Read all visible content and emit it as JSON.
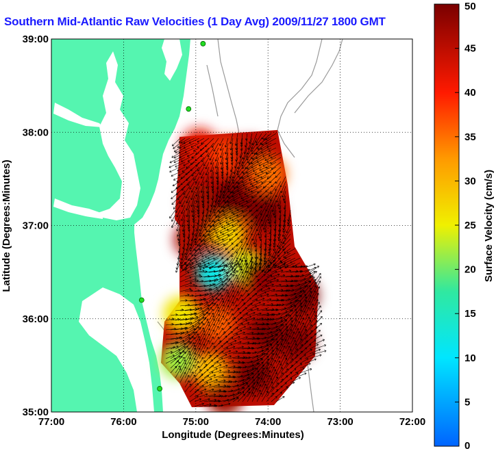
{
  "title": "Southern Mid-Atlantic Raw Velocities (1 Day Avg) 2009/11/27 1800 GMT",
  "x_axis": {
    "label": "Longitude (Degrees:Minutes)",
    "ticks": [
      {
        "value": -77,
        "label": "77:00"
      },
      {
        "value": -76,
        "label": "76:00"
      },
      {
        "value": -75,
        "label": "75:00"
      },
      {
        "value": -74,
        "label": "74:00"
      },
      {
        "value": -73,
        "label": "73:00"
      },
      {
        "value": -72,
        "label": "72:00"
      }
    ]
  },
  "y_axis": {
    "label": "Latitude (Degrees:Minutes)",
    "ticks": [
      {
        "value": 35,
        "label": "35:00"
      },
      {
        "value": 36,
        "label": "36:00"
      },
      {
        "value": 37,
        "label": "37:00"
      },
      {
        "value": 38,
        "label": "38:00"
      },
      {
        "value": 39,
        "label": "39:00"
      }
    ]
  },
  "colorbar": {
    "label": "Surface Velocity (cm/s)",
    "min": 0,
    "max": 50,
    "ticks": [
      {
        "value": 0,
        "label": "0"
      },
      {
        "value": 5,
        "label": "5"
      },
      {
        "value": 10,
        "label": "10"
      },
      {
        "value": 15,
        "label": "15"
      },
      {
        "value": 20,
        "label": "20"
      },
      {
        "value": 25,
        "label": "25"
      },
      {
        "value": 30,
        "label": "30"
      },
      {
        "value": 35,
        "label": "35"
      },
      {
        "value": 40,
        "label": "40"
      },
      {
        "value": 45,
        "label": "45"
      },
      {
        "value": 50,
        "label": "50"
      }
    ]
  },
  "colors": {
    "land": "#55f5b0",
    "water": "#ffffff",
    "title": "#1a1aff",
    "station": "#22dd22",
    "bathymetry": "#999999"
  },
  "stations": [
    {
      "lon": -74.9,
      "lat": 38.95
    },
    {
      "lon": -75.1,
      "lat": 38.25
    },
    {
      "lon": -75.75,
      "lat": 36.2
    },
    {
      "lon": -75.5,
      "lat": 35.25
    }
  ],
  "patches": [
    {
      "lon": -74.95,
      "lat": 37.85,
      "speed": 42
    },
    {
      "lon": -74.55,
      "lat": 37.75,
      "speed": 38
    },
    {
      "lon": -74.25,
      "lat": 37.75,
      "speed": 45
    },
    {
      "lon": -74.0,
      "lat": 37.55,
      "speed": 35
    },
    {
      "lon": -74.95,
      "lat": 37.25,
      "speed": 47
    },
    {
      "lon": -74.5,
      "lat": 37.3,
      "speed": 50
    },
    {
      "lon": -74.05,
      "lat": 37.15,
      "speed": 50
    },
    {
      "lon": -75.05,
      "lat": 36.85,
      "speed": 46
    },
    {
      "lon": -74.55,
      "lat": 36.9,
      "speed": 28
    },
    {
      "lon": -74.75,
      "lat": 36.5,
      "speed": 12
    },
    {
      "lon": -74.3,
      "lat": 36.55,
      "speed": 24
    },
    {
      "lon": -74.1,
      "lat": 36.45,
      "speed": 48
    },
    {
      "lon": -73.55,
      "lat": 36.25,
      "speed": 50
    },
    {
      "lon": -75.2,
      "lat": 36.05,
      "speed": 26
    },
    {
      "lon": -74.7,
      "lat": 35.95,
      "speed": 36
    },
    {
      "lon": -74.0,
      "lat": 35.85,
      "speed": 50
    },
    {
      "lon": -73.6,
      "lat": 35.75,
      "speed": 49
    },
    {
      "lon": -75.25,
      "lat": 35.55,
      "speed": 22
    },
    {
      "lon": -74.8,
      "lat": 35.45,
      "speed": 30
    },
    {
      "lon": -74.2,
      "lat": 35.4,
      "speed": 50
    },
    {
      "lon": -74.6,
      "lat": 35.15,
      "speed": 47
    }
  ]
}
